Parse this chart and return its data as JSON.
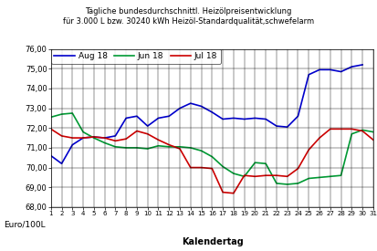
{
  "title_line1": "Tägliche bundesdurchschnittl. Heizölpreisentwicklung",
  "title_line2": "für 3.000 L bzw. 30240 kWh Heizöl-Standardqualität,schwefelarm",
  "xlabel": "Kalendertag",
  "ylabel": "Euro/100L",
  "ylim": [
    68.0,
    76.0
  ],
  "yticks": [
    68.0,
    69.0,
    70.0,
    71.0,
    72.0,
    73.0,
    74.0,
    75.0,
    76.0
  ],
  "xticks": [
    1,
    2,
    3,
    4,
    5,
    6,
    7,
    8,
    9,
    10,
    11,
    12,
    13,
    14,
    15,
    16,
    17,
    18,
    19,
    20,
    21,
    22,
    23,
    24,
    25,
    26,
    27,
    28,
    29,
    30,
    31
  ],
  "aug18": [
    70.6,
    70.2,
    71.15,
    71.5,
    71.55,
    71.5,
    71.6,
    72.5,
    72.6,
    72.1,
    72.5,
    72.6,
    73.0,
    73.25,
    73.1,
    72.8,
    72.45,
    72.5,
    72.45,
    72.5,
    72.45,
    72.1,
    72.05,
    72.6,
    74.7,
    74.95,
    74.95,
    74.85,
    75.1,
    75.2,
    null
  ],
  "jun18": [
    72.55,
    72.7,
    72.75,
    71.8,
    71.5,
    71.25,
    71.05,
    71.0,
    71.0,
    70.95,
    71.1,
    71.05,
    71.05,
    71.0,
    70.85,
    70.55,
    70.05,
    69.7,
    69.55,
    70.25,
    70.2,
    69.2,
    69.15,
    69.2,
    69.45,
    69.5,
    69.55,
    69.6,
    71.7,
    71.9,
    71.8
  ],
  "jul18": [
    71.95,
    71.6,
    71.5,
    71.5,
    71.55,
    71.5,
    71.35,
    71.45,
    71.85,
    71.7,
    71.4,
    71.15,
    70.95,
    70.0,
    70.0,
    69.95,
    68.75,
    68.7,
    69.6,
    69.55,
    69.6,
    69.6,
    69.55,
    69.95,
    70.9,
    71.5,
    71.95,
    71.95,
    71.95,
    71.85,
    71.4
  ],
  "aug18_color": "#0000cc",
  "jun18_color": "#009933",
  "jul18_color": "#cc0000",
  "aug18_label": "Aug 18",
  "jun18_label": "Jun 18",
  "jul18_label": "Jul 18",
  "background_color": "#ffffff",
  "grid_color": "#000000"
}
